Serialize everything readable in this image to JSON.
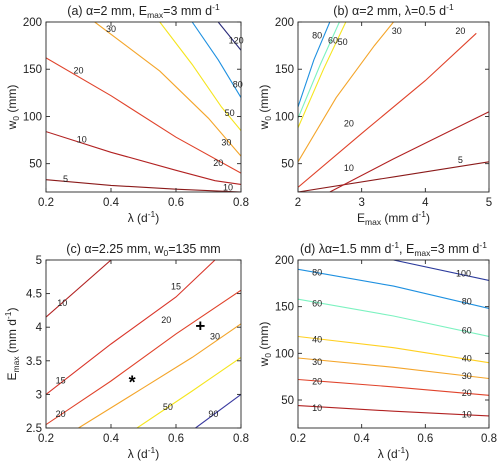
{
  "colors": {
    "5": "#8b1a1a",
    "10": "#b22222",
    "15": "#d9362b",
    "20": "#e0432b",
    "30": "#f4a52a",
    "40": "#ffd020",
    "50": "#f5e51f",
    "60": "#7cf2c0",
    "80": "#1e90e0",
    "90": "#3a3aa0",
    "100": "#2b3a9c",
    "120": "#2a2a7a",
    "axis": "#262626",
    "marker": "#000000"
  },
  "chart_data": [
    {
      "type": "contour",
      "title": "(a)  α=2 mm, E_max=3 mm d⁻¹",
      "title_parts": {
        "prefix": "(a)  α=2 mm, E",
        "sub": "max",
        "mid": "=3 mm d",
        "sup": "-1",
        "suffix": ""
      },
      "xlabel_parts": {
        "base": "λ (d",
        "sup": "-1",
        "end": ")"
      },
      "ylabel_parts": {
        "base": "w",
        "sub": "0",
        "end": " (mm)"
      },
      "xlim": [
        0.2,
        0.8
      ],
      "ylim": [
        20,
        200
      ],
      "xticks": [
        "0.2",
        "0.4",
        "0.6",
        "0.8"
      ],
      "xtick_values": [
        0.2,
        0.4,
        0.6,
        0.8
      ],
      "yticks": [
        "50",
        "100",
        "150",
        "200"
      ],
      "ytick_values": [
        50,
        100,
        150,
        200
      ],
      "contours": [
        {
          "level": 5,
          "label": "5",
          "points": [
            [
              0.2,
              33
            ],
            [
              0.4,
              27
            ],
            [
              0.6,
              23
            ],
            [
              0.8,
              20
            ]
          ],
          "label_at": [
            0.26,
            33
          ]
        },
        {
          "level": 10,
          "label": "10",
          "points": [
            [
              0.2,
              84
            ],
            [
              0.4,
              62
            ],
            [
              0.6,
              43
            ],
            [
              0.72,
              32
            ],
            [
              0.8,
              28
            ]
          ],
          "label_at": [
            0.31,
            75
          ]
        },
        {
          "level": 10,
          "label": "10",
          "points": [],
          "label_at": [
            0.76,
            24
          ]
        },
        {
          "level": 20,
          "label": "20",
          "points": [
            [
              0.2,
              162
            ],
            [
              0.4,
              122
            ],
            [
              0.6,
              78
            ],
            [
              0.8,
              40
            ]
          ],
          "label_at": [
            0.3,
            148
          ]
        },
        {
          "level": 20,
          "label": "20",
          "points": [],
          "label_at": [
            0.73,
            50
          ]
        },
        {
          "level": 30,
          "label": "30",
          "points": [
            [
              0.35,
              200
            ],
            [
              0.55,
              148
            ],
            [
              0.7,
              98
            ],
            [
              0.8,
              58
            ]
          ],
          "label_at": [
            0.4,
            192
          ]
        },
        {
          "level": 30,
          "label": "30",
          "points": [],
          "label_at": [
            0.755,
            72
          ]
        },
        {
          "level": 50,
          "label": "50",
          "points": [
            [
              0.55,
              200
            ],
            [
              0.65,
              155
            ],
            [
              0.74,
              110
            ],
            [
              0.8,
              85
            ]
          ],
          "label_at": [
            0.765,
            103
          ]
        },
        {
          "level": 80,
          "label": "80",
          "points": [
            [
              0.65,
              200
            ],
            [
              0.73,
              160
            ],
            [
              0.8,
              120
            ]
          ],
          "label_at": [
            0.79,
            133
          ]
        },
        {
          "level": 120,
          "label": "120",
          "points": [
            [
              0.73,
              200
            ],
            [
              0.8,
              170
            ]
          ],
          "label_at": [
            0.785,
            180
          ]
        }
      ]
    },
    {
      "type": "contour",
      "title": "(b)  α=2 mm, λ=0.5 d⁻¹",
      "title_parts": {
        "prefix": "(b)  α=2 mm, λ=0.5 d",
        "sub": "",
        "mid": "",
        "sup": "-1",
        "suffix": ""
      },
      "xlabel_parts": {
        "base": "E",
        "sub": "max",
        "end": " (mm d",
        "sup": "-1",
        "end2": ")"
      },
      "ylabel_parts": {
        "base": "w",
        "sub": "0",
        "end": " (mm)"
      },
      "xlim": [
        2,
        5
      ],
      "ylim": [
        20,
        200
      ],
      "xticks": [
        "2",
        "3",
        "4",
        "5"
      ],
      "xtick_values": [
        2,
        3,
        4,
        5
      ],
      "yticks": [
        "50",
        "100",
        "150",
        "200"
      ],
      "ytick_values": [
        50,
        100,
        150,
        200
      ],
      "contours": [
        {
          "level": 5,
          "label": "5",
          "points": [
            [
              2,
              20
            ],
            [
              3.5,
              36
            ],
            [
              5,
              52
            ]
          ],
          "label_at": [
            4.55,
            53
          ]
        },
        {
          "level": 10,
          "label": "10",
          "points": [
            [
              2.5,
              20
            ],
            [
              3.5,
              55
            ],
            [
              5,
              105
            ]
          ],
          "label_at": [
            2.8,
            45
          ]
        },
        {
          "level": 20,
          "label": "20",
          "points": [
            [
              2,
              25
            ],
            [
              3,
              82
            ],
            [
              4,
              138
            ],
            [
              4.8,
              188
            ]
          ],
          "label_at": [
            2.8,
            92
          ]
        },
        {
          "level": 20,
          "label": "20",
          "points": [],
          "label_at": [
            4.55,
            190
          ]
        },
        {
          "level": 30,
          "label": "30",
          "points": [
            [
              2,
              52
            ],
            [
              2.6,
              120
            ],
            [
              3.2,
              175
            ],
            [
              3.5,
              200
            ]
          ],
          "label_at": [
            3.55,
            190
          ]
        },
        {
          "level": 50,
          "label": "50",
          "points": [
            [
              2,
              88
            ],
            [
              2.4,
              150
            ],
            [
              2.75,
              200
            ]
          ],
          "label_at": [
            2.7,
            178
          ]
        },
        {
          "level": 60,
          "label": "60",
          "points": [
            [
              2,
              98
            ],
            [
              2.35,
              155
            ],
            [
              2.65,
              200
            ]
          ],
          "label_at": [
            2.55,
            180
          ]
        },
        {
          "level": 80,
          "label": "80",
          "points": [
            [
              2,
              110
            ],
            [
              2.25,
              160
            ],
            [
              2.5,
              200
            ]
          ],
          "label_at": [
            2.3,
            185
          ]
        }
      ]
    },
    {
      "type": "contour",
      "title": "(c)  α=2.25 mm, w₀=135 mm",
      "title_parts": {
        "prefix": "(c)  α=2.25 mm, w",
        "sub": "0",
        "mid": "=135 mm",
        "sup": "",
        "suffix": ""
      },
      "xlabel_parts": {
        "base": "λ (d",
        "sup": "-1",
        "end": ")"
      },
      "ylabel_parts": {
        "base": "E",
        "sub": "max",
        "end": " (mm d",
        "sup": "-1",
        "end2": ")"
      },
      "xlim": [
        0.2,
        0.8
      ],
      "ylim": [
        2.5,
        5
      ],
      "xticks": [
        "0.2",
        "0.4",
        "0.6",
        "0.8"
      ],
      "xtick_values": [
        0.2,
        0.4,
        0.6,
        0.8
      ],
      "yticks": [
        "2.5",
        "3",
        "3.5",
        "4",
        "4.5",
        "5"
      ],
      "ytick_values": [
        2.5,
        3,
        3.5,
        4,
        4.5,
        5
      ],
      "contours": [
        {
          "level": 10,
          "label": "10",
          "points": [
            [
              0.2,
              4.15
            ],
            [
              0.4,
              5.0
            ]
          ],
          "label_at": [
            0.25,
            4.35
          ]
        },
        {
          "level": 15,
          "label": "15",
          "points": [
            [
              0.2,
              3.0
            ],
            [
              0.4,
              3.75
            ],
            [
              0.6,
              4.45
            ],
            [
              0.72,
              5.0
            ]
          ],
          "label_at": [
            0.245,
            3.2
          ]
        },
        {
          "level": 15,
          "label": "15",
          "points": [],
          "label_at": [
            0.6,
            4.6
          ]
        },
        {
          "level": 20,
          "label": "20",
          "points": [
            [
              0.2,
              2.55
            ],
            [
              0.4,
              3.2
            ],
            [
              0.6,
              3.9
            ],
            [
              0.8,
              4.55
            ]
          ],
          "label_at": [
            0.245,
            2.7
          ]
        },
        {
          "level": 20,
          "label": "20",
          "points": [],
          "label_at": [
            0.57,
            4.1
          ]
        },
        {
          "level": 30,
          "label": "30",
          "points": [
            [
              0.3,
              2.5
            ],
            [
              0.5,
              3.1
            ],
            [
              0.65,
              3.55
            ],
            [
              0.8,
              4.05
            ]
          ],
          "label_at": [
            0.72,
            3.85
          ]
        },
        {
          "level": 50,
          "label": "50",
          "points": [
            [
              0.48,
              2.5
            ],
            [
              0.65,
              3.05
            ],
            [
              0.8,
              3.55
            ]
          ],
          "label_at": [
            0.575,
            2.8
          ]
        },
        {
          "level": 90,
          "label": "90",
          "points": [
            [
              0.66,
              2.5
            ],
            [
              0.8,
              3.0
            ]
          ],
          "label_at": [
            0.715,
            2.7
          ]
        }
      ],
      "markers": [
        {
          "symbol": "*",
          "x": 0.465,
          "y": 3.25
        },
        {
          "symbol": "+",
          "x": 0.675,
          "y": 4.0
        }
      ]
    },
    {
      "type": "contour",
      "title": "(d)  λα=1.5 mm d⁻¹, E_max=3 mm d⁻¹",
      "title_parts": {
        "prefix": "(d)  λα=1.5 mm d",
        "sup1": "-1",
        "mid1": ", E",
        "sub": "max",
        "mid": "=3 mm d",
        "sup": "-1",
        "suffix": ""
      },
      "xlabel_parts": {
        "base": "λ (d",
        "sup": "-1",
        "end": ")"
      },
      "ylabel_parts": {
        "base": "w",
        "sub": "0",
        "end": " (mm)"
      },
      "xlim": [
        0.2,
        0.8
      ],
      "ylim": [
        20,
        200
      ],
      "xticks": [
        "0.2",
        "0.4",
        "0.6",
        "0.8"
      ],
      "xtick_values": [
        0.2,
        0.4,
        0.6,
        0.8
      ],
      "yticks": [
        "50",
        "100",
        "150",
        "200"
      ],
      "ytick_values": [
        50,
        100,
        150,
        200
      ],
      "contours": [
        {
          "level": 10,
          "label": "10",
          "points": [
            [
              0.2,
              44
            ],
            [
              0.5,
              38
            ],
            [
              0.8,
              33
            ]
          ],
          "label_at": [
            0.26,
            41
          ]
        },
        {
          "level": 10,
          "label": "10",
          "points": [],
          "label_at": [
            0.73,
            34
          ]
        },
        {
          "level": 20,
          "label": "20",
          "points": [
            [
              0.2,
              72
            ],
            [
              0.5,
              64
            ],
            [
              0.8,
              55
            ]
          ],
          "label_at": [
            0.26,
            69
          ]
        },
        {
          "level": 20,
          "label": "20",
          "points": [],
          "label_at": [
            0.73,
            57
          ]
        },
        {
          "level": 30,
          "label": "30",
          "points": [
            [
              0.2,
              95
            ],
            [
              0.5,
              85
            ],
            [
              0.8,
              73
            ]
          ],
          "label_at": [
            0.26,
            90
          ]
        },
        {
          "level": 30,
          "label": "30",
          "points": [],
          "label_at": [
            0.73,
            75
          ]
        },
        {
          "level": 40,
          "label": "40",
          "points": [
            [
              0.2,
              118
            ],
            [
              0.5,
              106
            ],
            [
              0.8,
              90
            ]
          ],
          "label_at": [
            0.26,
            114
          ]
        },
        {
          "level": 40,
          "label": "40",
          "points": [],
          "label_at": [
            0.73,
            94
          ]
        },
        {
          "level": 60,
          "label": "60",
          "points": [
            [
              0.2,
              158
            ],
            [
              0.5,
              140
            ],
            [
              0.8,
              118
            ]
          ],
          "label_at": [
            0.26,
            153
          ]
        },
        {
          "level": 60,
          "label": "60",
          "points": [],
          "label_at": [
            0.73,
            124
          ]
        },
        {
          "level": 80,
          "label": "80",
          "points": [
            [
              0.2,
              190
            ],
            [
              0.5,
              172
            ],
            [
              0.8,
              148
            ]
          ],
          "label_at": [
            0.26,
            186
          ]
        },
        {
          "level": 80,
          "label": "80",
          "points": [],
          "label_at": [
            0.73,
            155
          ]
        },
        {
          "level": 100,
          "label": "100",
          "points": [
            [
              0.5,
              200
            ],
            [
              0.8,
              178
            ]
          ],
          "label_at": [
            0.72,
            185
          ]
        }
      ]
    }
  ]
}
